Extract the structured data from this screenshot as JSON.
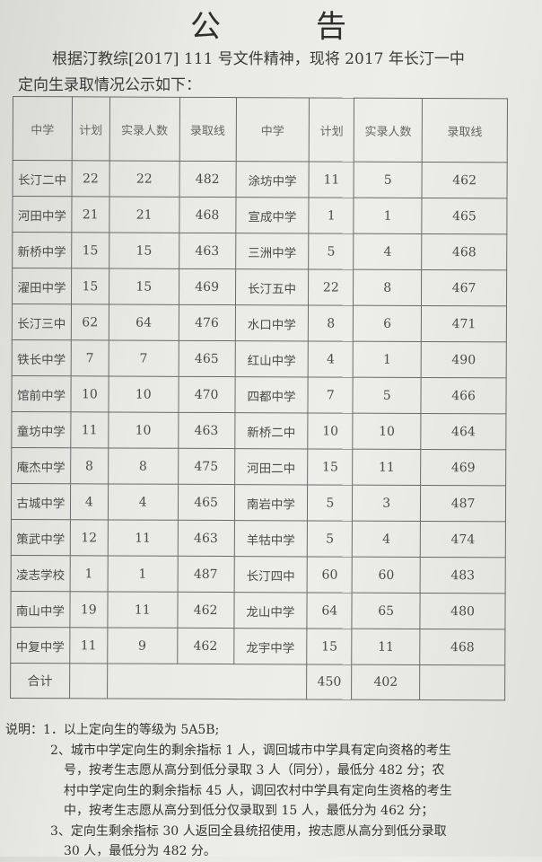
{
  "title": {
    "char1": "公",
    "char2": "告"
  },
  "intro": {
    "line1": "根据汀教综[2017] 111 号文件精神，现将 2017 年长汀一中",
    "line2": "定向生录取情况公示如下："
  },
  "table": {
    "headers": [
      "中学",
      "计划",
      "实录人数",
      "录取线",
      "中学",
      "计划",
      "实录人数",
      "录取线"
    ],
    "rows": [
      [
        "长汀二中",
        "22",
        "22",
        "482",
        "涂坊中学",
        "11",
        "5",
        "462"
      ],
      [
        "河田中学",
        "21",
        "21",
        "468",
        "宣成中学",
        "1",
        "1",
        "465"
      ],
      [
        "新桥中学",
        "15",
        "15",
        "463",
        "三洲中学",
        "5",
        "4",
        "468"
      ],
      [
        "濯田中学",
        "15",
        "15",
        "469",
        "长汀五中",
        "22",
        "8",
        "467"
      ],
      [
        "长汀三中",
        "62",
        "64",
        "476",
        "水口中学",
        "8",
        "6",
        "471"
      ],
      [
        "铁长中学",
        "7",
        "7",
        "465",
        "红山中学",
        "4",
        "1",
        "490"
      ],
      [
        "馆前中学",
        "10",
        "10",
        "470",
        "四都中学",
        "7",
        "5",
        "466"
      ],
      [
        "童坊中学",
        "11",
        "10",
        "463",
        "新桥二中",
        "10",
        "10",
        "464"
      ],
      [
        "庵杰中学",
        "8",
        "8",
        "475",
        "河田二中",
        "15",
        "11",
        "469"
      ],
      [
        "古城中学",
        "4",
        "4",
        "465",
        "南岩中学",
        "5",
        "3",
        "487"
      ],
      [
        "策武中学",
        "12",
        "11",
        "463",
        "羊牯中学",
        "5",
        "4",
        "474"
      ],
      [
        "凌志学校",
        "1",
        "1",
        "487",
        "长汀四中",
        "60",
        "60",
        "483"
      ],
      [
        "南山中学",
        "19",
        "11",
        "462",
        "龙山中学",
        "64",
        "65",
        "480"
      ],
      [
        "中复中学",
        "11",
        "9",
        "462",
        "龙宇中学",
        "15",
        "11",
        "468"
      ]
    ],
    "total": {
      "label": "合计",
      "plan": "450",
      "actual": "402"
    }
  },
  "notes": {
    "label": "说明：",
    "item1": "1．以上定向生的等级为 5A5B;",
    "item2_l1": "2、城市中学定向生的剩余指标 1 人，调回城市中学具有定向资格的考生",
    "item2_l2": "号，按考生志愿从高分到低分录取 3 人（同分），最低分 482 分；农",
    "item2_l3": "村中学定向生的剩余指标 45 人，调回农村中学具有定向生资格的考生",
    "item2_l4": "中，按考生志愿从高分到低分仅录取到 15 人，最低分为 462 分；",
    "item3_l1": "3、定向生剩余指标 30 人返回全县统招使用，按志愿从高分到低分录取",
    "item3_l2": "30 人，最低分为 482 分。"
  }
}
